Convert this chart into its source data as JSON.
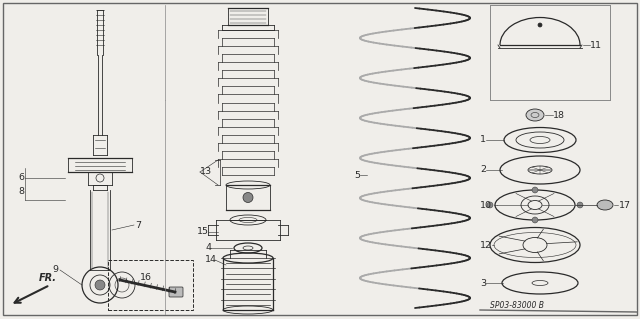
{
  "bg_color": "#f0eeea",
  "line_color": "#2a2a2a",
  "border_color": "#444444",
  "part_number": "SP03-83000 B",
  "figsize": [
    6.4,
    3.19
  ],
  "dpi": 100
}
